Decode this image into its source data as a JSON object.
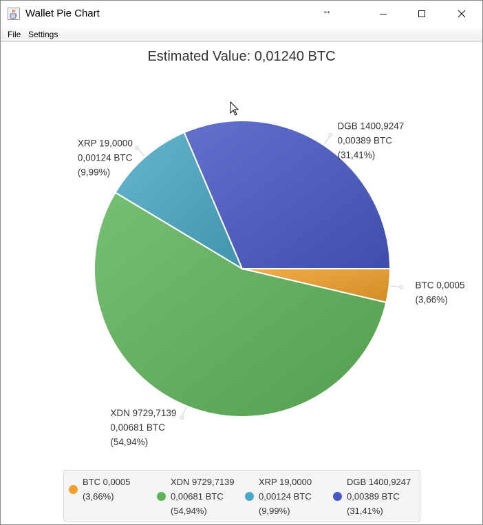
{
  "window": {
    "title": "Wallet Pie Chart",
    "menu": [
      "File",
      "Settings"
    ]
  },
  "colors": {
    "BTC": "#ef9f2a",
    "XDN": "#5fb45a",
    "XRP": "#4aa8c4",
    "DGB": "#4858c4"
  },
  "chart_data": {
    "type": "pie",
    "title": "Estimated Value: 0,01240 BTC",
    "slices": [
      {
        "key": "BTC",
        "coin": "BTC",
        "amount": "0,0005",
        "btc": "",
        "percent": "(3,66%)",
        "value": 3.66
      },
      {
        "key": "XDN",
        "coin": "XDN",
        "amount": "9729,7139",
        "btc": "0,00681 BTC",
        "percent": "(54,94%)",
        "value": 54.94
      },
      {
        "key": "XRP",
        "coin": "XRP",
        "amount": "19,0000",
        "btc": "0,00124 BTC",
        "percent": "(9,99%)",
        "value": 9.99
      },
      {
        "key": "DGB",
        "coin": "DGB",
        "amount": "1400,9247",
        "btc": "0,00389 BTC",
        "percent": "(31,41%)",
        "value": 31.41
      }
    ],
    "start_angle_deg": 0,
    "direction": "clockwise",
    "legend_position": "bottom"
  },
  "legend": [
    {
      "key": "BTC",
      "line1": "BTC 0,0005",
      "line2": "(3,66%)",
      "line3": ""
    },
    {
      "key": "XDN",
      "line1": "XDN 9729,7139",
      "line2": "0,00681 BTC",
      "line3": "(54,94%)"
    },
    {
      "key": "XRP",
      "line1": "XRP 19,0000",
      "line2": "0,00124 BTC",
      "line3": "(9,99%)"
    },
    {
      "key": "DGB",
      "line1": "DGB 1400,9247",
      "line2": "0,00389 BTC",
      "line3": "(31,41%)"
    }
  ]
}
